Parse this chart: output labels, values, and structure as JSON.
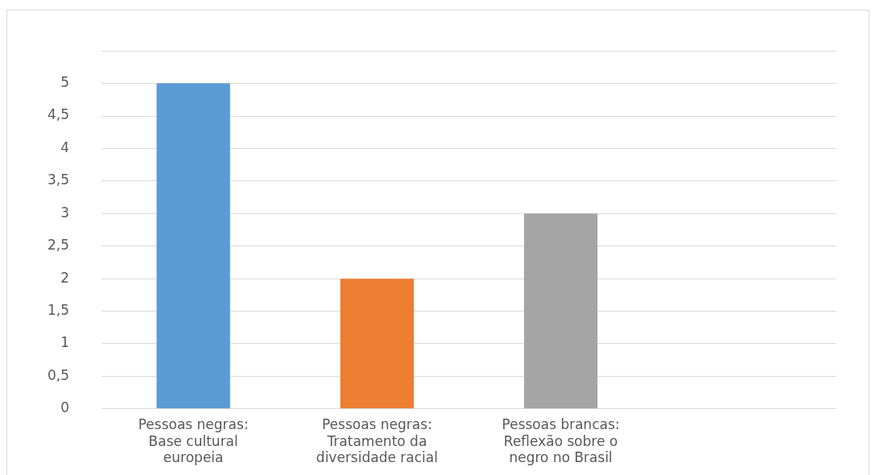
{
  "chart_data": {
    "type": "bar",
    "categories": [
      "Pessoas negras: Base cultural europeia",
      "Pessoas negras: Tratamento da diversidade racial",
      "Pessoas brancas: Reflexão sobre o negro no Brasil",
      null
    ],
    "values": [
      5,
      2,
      3,
      null
    ],
    "colors": [
      "#5b9bd5",
      "#ed7d31",
      "#a5a5a5",
      "#a5a5a5"
    ],
    "ylim": [
      0,
      5.5
    ],
    "yticks": [
      0,
      {
        "value": 0.5,
        "label": "0,5"
      },
      1,
      {
        "value": 1.5,
        "label": "1,5"
      },
      2,
      {
        "value": 2.5,
        "label": "2,5"
      },
      3,
      {
        "value": 3.5,
        "label": "3,5"
      },
      4,
      {
        "value": 4.5,
        "label": "4,5"
      },
      5,
      {
        "value": 5.5,
        "label": null
      }
    ],
    "grid": "y",
    "legend": false
  }
}
